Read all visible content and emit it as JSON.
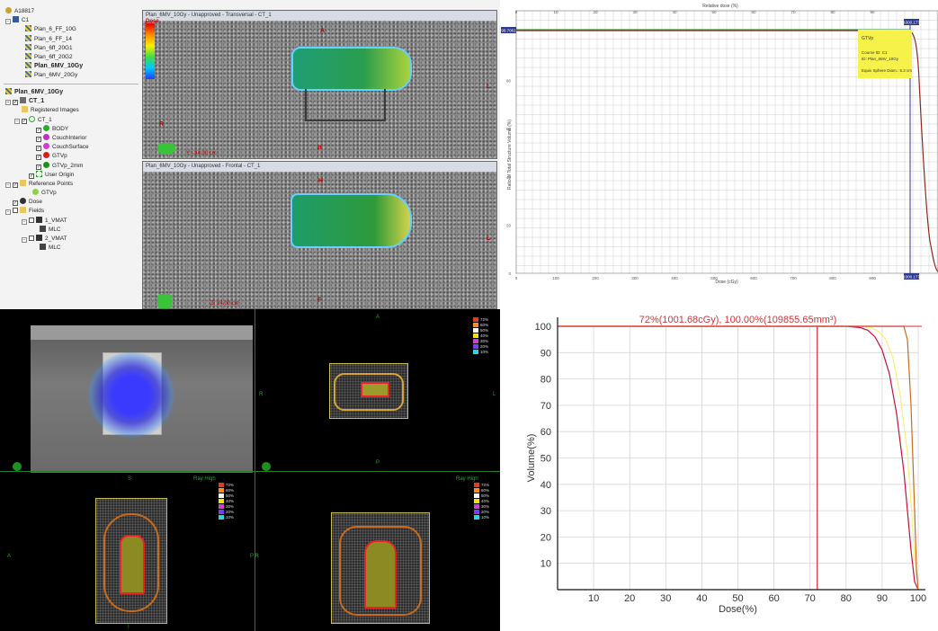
{
  "tree": {
    "root_label": "A18817",
    "course_label": "C1",
    "plans": [
      "Plan_6_FF_10G",
      "Plan_6_FF_14",
      "Plan_6ff_20G1",
      "Plan_6ff_20G2",
      "Plan_6MV_10Gy",
      "Plan_6MV_20Gy"
    ],
    "active_plan": "Plan_6MV_10Gy",
    "ct_label": "CT_1",
    "registered_images": "Registered Images",
    "ct_sub_label": "CT_1",
    "structures": [
      "BODY",
      "CouchInterior",
      "CouchSurface",
      "GTVp",
      "GTVp_2mm"
    ],
    "structure_colors": [
      "#2fa82f",
      "#c030c0",
      "#d040d0",
      "#d42020",
      "#1f8f1f"
    ],
    "user_origin": "User Origin",
    "reference_points": "Reference Points",
    "ref_point": "GTVp",
    "dose": "Dose",
    "fields": "Fields",
    "field_items": [
      "1_VMAT",
      "MLC",
      "2_VMAT",
      "MLC"
    ]
  },
  "ct": {
    "transversal_title": "Plan_6MV_10Gy - Unapproved - Transversal - CT_1",
    "frontal_title": "Plan_6MV_10Gy - Unapproved - Frontal - CT_1",
    "orientation": {
      "top": "A",
      "bottom": "P",
      "left": "R",
      "right": "L",
      "head": "H",
      "foot": "F"
    },
    "dose_label": "Dose",
    "transversal_coord": "Y: -34.00 cm",
    "frontal_coord": "Z: 24.00 cm"
  },
  "dvh_grid": {
    "top_axis_label": "Relative dose (%)",
    "x_axis_label": "Dose (cGy)",
    "y_axis_label": "Ratio of Total Structure Volume (%)",
    "x_ticks": [
      "0",
      "100",
      "200",
      "300",
      "400",
      "500",
      "600",
      "700",
      "800",
      "900",
      "1000"
    ],
    "y_ticks": [
      "0",
      "20",
      "40",
      "60",
      "80"
    ],
    "top_ticks": [
      "0",
      "10",
      "20",
      "30",
      "40",
      "50",
      "60",
      "70",
      "80",
      "90"
    ],
    "left_marker": "99.7061",
    "top_marker": "1000.177",
    "bottom_marker": "1000.177",
    "tooltip": {
      "structure": "GTVp",
      "course": "Course ID: C1",
      "plan": "ID: Plan_6MV_10Gy",
      "equiv": "Equiv Sphere Diam.: 5.3 cm"
    },
    "colors": {
      "tooltip_bg": "#f6f24a",
      "curve": "#8b2a1a",
      "marker": "#2e3a8c"
    }
  },
  "beam": {
    "ray_high": "Ray High",
    "labels": {
      "a": "A",
      "p": "P",
      "r": "R",
      "l": "L",
      "s": "S",
      "i": "I",
      "pr": "P R"
    },
    "legend_values": [
      "72%",
      "60%",
      "50%",
      "40%",
      "30%",
      "20%",
      "10%"
    ],
    "legend_colors": [
      "#e53a1e",
      "#ff8c1a",
      "#ffffff",
      "#f2e600",
      "#d040d0",
      "#7a3cff",
      "#29d6e6"
    ]
  },
  "chart_data": {
    "type": "line",
    "title": "72%(1001.68cGy), 100.00%(109855.65mm³)",
    "xlabel": "Dose(%)",
    "ylabel": "Volume(%)",
    "xlim": [
      0,
      100
    ],
    "ylim": [
      0,
      100
    ],
    "x_ticks": [
      10,
      20,
      30,
      40,
      50,
      60,
      70,
      80,
      90,
      100
    ],
    "y_ticks": [
      10,
      20,
      30,
      40,
      50,
      60,
      70,
      80,
      90,
      100
    ],
    "grid": true,
    "cursor_x": 72,
    "series": [
      {
        "color": "#c0123c",
        "x": [
          0,
          80,
          84,
          86,
          88,
          90,
          92,
          94,
          96,
          97,
          98,
          99,
          100
        ],
        "y": [
          100,
          100,
          99.5,
          98.5,
          96,
          91,
          82,
          67,
          45,
          30,
          15,
          3,
          0
        ]
      },
      {
        "color": "#f3ef7a",
        "x": [
          0,
          84,
          87,
          89,
          91,
          93,
          95,
          97,
          98,
          99,
          100
        ],
        "y": [
          100,
          100,
          99.5,
          98,
          95,
          88,
          74,
          52,
          33,
          12,
          0
        ]
      },
      {
        "color": "#c86b1c",
        "x": [
          0,
          96,
          97,
          98,
          99,
          99.5,
          100
        ],
        "y": [
          100,
          100,
          95,
          70,
          30,
          8,
          0
        ]
      }
    ],
    "colors": {
      "axes": "#111111",
      "cursor": "#d8283a",
      "grid": "#d6d6d6",
      "title": "#c8383a"
    }
  }
}
